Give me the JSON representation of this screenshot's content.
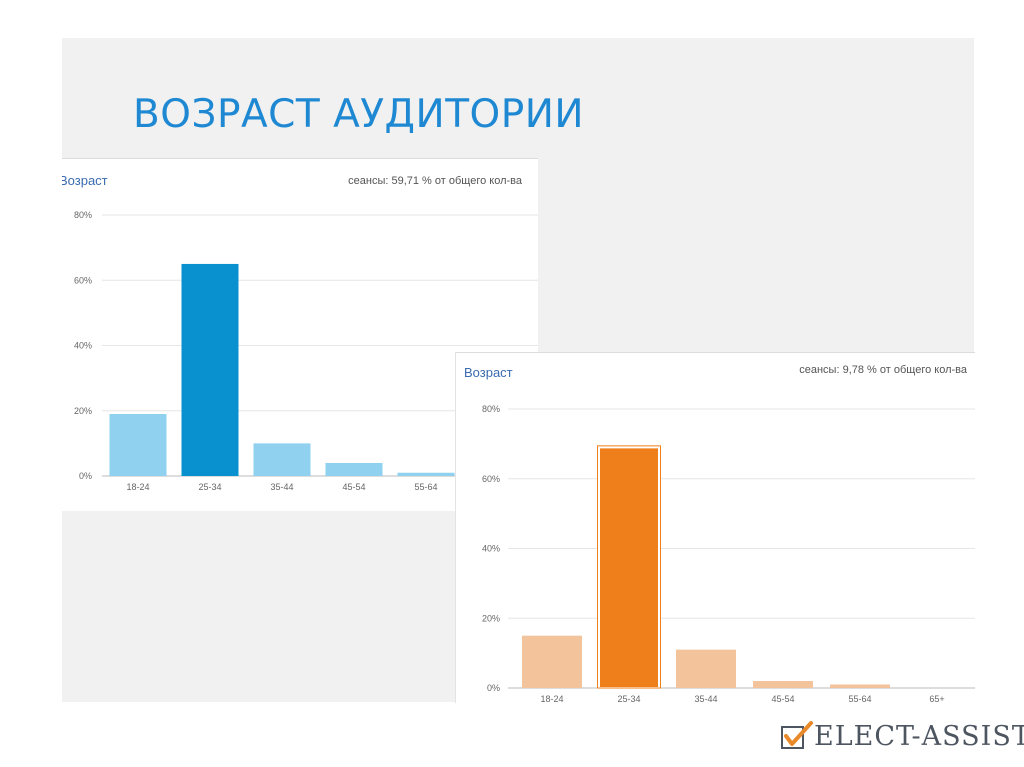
{
  "slide": {
    "title": "ВОЗРАСТ АУДИТОРИИ",
    "logo_text": "ELECT-ASSIST"
  },
  "colors": {
    "title": "#1e88d3",
    "blue_dark": "#0890cf",
    "blue_light": "#8fd1ee",
    "orange_dark": "#ef7f1a",
    "orange_light": "#f3c49c",
    "logo_check": "#e8892a"
  },
  "chart_data": [
    {
      "type": "bar",
      "title": "Возраст",
      "summary": "сеансы: 59,71 % от общего кол-ва",
      "categories": [
        "18-24",
        "25-34",
        "35-44",
        "45-54",
        "55-64"
      ],
      "values": [
        19,
        65,
        10,
        4,
        1
      ],
      "unit": "%",
      "ylim": [
        0,
        80
      ],
      "yticks": [
        "80%",
        "60%",
        "40%",
        "20%",
        "0%"
      ],
      "highlight_index": 1,
      "grid": true
    },
    {
      "type": "bar",
      "title": "Возраст",
      "summary": "сеансы: 9,78 % от общего кол-ва",
      "categories": [
        "18-24",
        "25-34",
        "35-44",
        "45-54",
        "55-64",
        "65+"
      ],
      "values": [
        15,
        69,
        11,
        2,
        1,
        0
      ],
      "unit": "%",
      "ylim": [
        0,
        80
      ],
      "yticks": [
        "80%",
        "60%",
        "40%",
        "20%",
        "0%"
      ],
      "highlight_index": 1,
      "grid": true
    }
  ]
}
